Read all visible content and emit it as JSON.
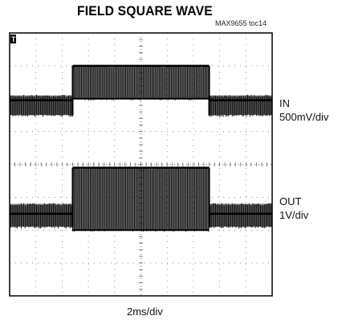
{
  "title": "FIELD SQUARE WAVE",
  "figure_ref": "MAX9655 toc14",
  "trigger_marker": "T",
  "x_unit_label": "2ms/div",
  "channels": {
    "in": {
      "name": "IN",
      "scale": "500mV/div"
    },
    "out": {
      "name": "OUT",
      "scale": "1V/div"
    }
  },
  "colors": {
    "trace": "#000000",
    "grid": "#666666",
    "frame": "#000000"
  },
  "chart_data": {
    "type": "line",
    "title": "FIELD SQUARE WAVE",
    "xlabel": "2ms/div",
    "ylabel": "",
    "grid": true,
    "x_divisions": 10,
    "y_divisions": 8,
    "xlim": [
      0,
      10
    ],
    "ylim": [
      0,
      8
    ],
    "series": [
      {
        "name": "IN",
        "scale": "500mV/div",
        "baseline_div": 5.95,
        "low_band_div": [
          5.5,
          6.1
        ],
        "high_band_div": [
          6.0,
          7.0
        ],
        "segments": [
          {
            "x_start": 0.0,
            "x_end": 2.4,
            "level": "low"
          },
          {
            "x_start": 2.4,
            "x_end": 7.6,
            "level": "high"
          },
          {
            "x_start": 7.6,
            "x_end": 10.0,
            "level": "low"
          }
        ]
      },
      {
        "name": "OUT",
        "scale": "1V/div",
        "baseline_div": 2.5,
        "low_band_div": [
          2.1,
          2.8
        ],
        "high_band_div": [
          2.0,
          3.9
        ],
        "segments": [
          {
            "x_start": 0.0,
            "x_end": 2.4,
            "level": "low"
          },
          {
            "x_start": 2.4,
            "x_end": 7.6,
            "level": "high"
          },
          {
            "x_start": 7.6,
            "x_end": 10.0,
            "level": "low"
          }
        ]
      }
    ]
  }
}
